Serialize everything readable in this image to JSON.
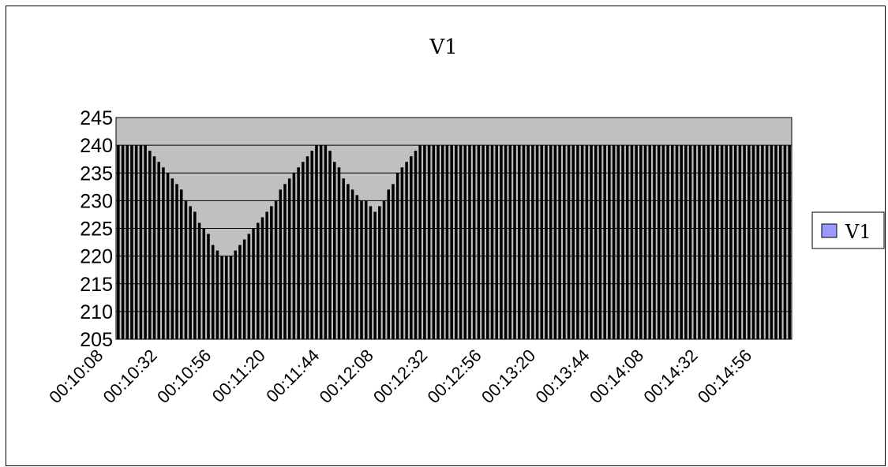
{
  "chart_data": {
    "type": "bar",
    "title": "V1",
    "xlabel": "",
    "ylabel": "",
    "ylim": [
      205,
      245
    ],
    "y_ticks": [
      205,
      210,
      215,
      220,
      225,
      230,
      235,
      240,
      245
    ],
    "x_ticks": [
      "00:10:08",
      "00:10:32",
      "00:10:56",
      "00:11:20",
      "00:11:44",
      "00:12:08",
      "00:12:32",
      "00:12:56",
      "00:13:20",
      "00:13:44",
      "00:14:08",
      "00:14:32",
      "00:14:56"
    ],
    "sample_interval_seconds": 2,
    "start_time": "00:10:08",
    "grid": true,
    "legend_position": "right",
    "series": [
      {
        "name": "V1",
        "color": "#9999ff",
        "values": [
          240,
          240,
          240,
          240,
          240,
          240,
          240,
          239,
          238,
          237,
          236,
          235,
          234,
          233,
          232,
          230,
          229,
          228,
          226,
          225,
          224,
          222,
          221,
          220,
          220,
          220,
          221,
          222,
          223,
          224,
          225,
          226,
          227,
          228,
          229,
          230,
          232,
          233,
          234,
          235,
          236,
          237,
          238,
          239,
          240,
          240,
          240,
          239,
          237,
          236,
          234,
          233,
          232,
          231,
          230,
          230,
          229,
          228,
          229,
          230,
          232,
          233,
          235,
          236,
          237,
          238,
          239,
          240,
          240,
          240,
          240,
          240,
          240,
          240,
          240,
          240,
          240,
          240,
          240,
          240,
          240,
          240,
          240,
          240,
          240,
          240,
          240,
          240,
          240,
          240,
          240,
          240,
          240,
          240,
          240,
          240,
          240,
          240,
          240,
          240,
          240,
          240,
          240,
          240,
          240,
          240,
          240,
          240,
          240,
          240,
          240,
          240,
          240,
          240,
          240,
          240,
          240,
          240,
          240,
          240,
          240,
          240,
          240,
          240,
          240,
          240,
          240,
          240,
          240,
          240,
          240,
          240,
          240,
          240,
          240,
          240,
          240,
          240,
          240,
          240,
          240,
          240,
          240,
          240,
          240,
          240,
          240,
          240,
          240,
          240
        ]
      }
    ]
  },
  "colors": {
    "plot_background": "#c0c0c0",
    "bar_fill": "#000000",
    "legend_swatch": "#9999ff"
  }
}
